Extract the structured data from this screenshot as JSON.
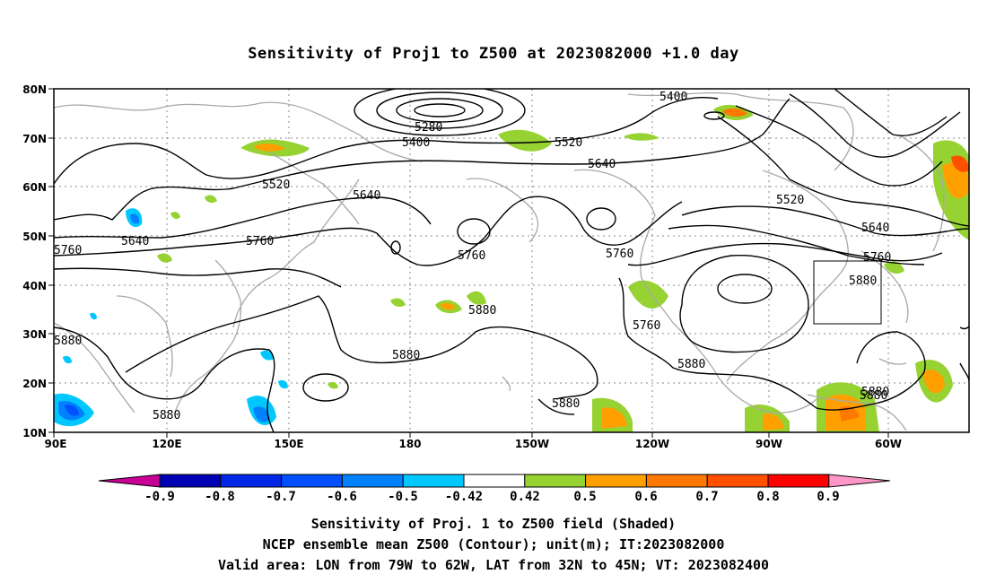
{
  "title": "Sensitivity of Proj1 to Z500 at 2023082000 +1.0 day",
  "lat_labels": [
    "80N",
    "70N",
    "60N",
    "50N",
    "40N",
    "30N",
    "20N",
    "10N"
  ],
  "lon_labels": [
    "90E",
    "120E",
    "150E",
    "180",
    "150W",
    "120W",
    "90W",
    "60W"
  ],
  "contour_labels": [
    "5400",
    "5280",
    "5400",
    "5520",
    "5640",
    "5520",
    "5640",
    "5640",
    "5760",
    "5760",
    "5760",
    "5760",
    "5640",
    "5520",
    "5760",
    "5880",
    "5880",
    "5880",
    "5760",
    "5880",
    "5880",
    "5880",
    "5880",
    "5880",
    "5880",
    "5760"
  ],
  "colorbar": {
    "labels": [
      "-0.9",
      "-0.8",
      "-0.7",
      "-0.6",
      "-0.5",
      "-0.42",
      "0.42",
      "0.5",
      "0.6",
      "0.7",
      "0.8",
      "0.9"
    ],
    "colors": [
      "#0000b4",
      "#0028e6",
      "#0050ff",
      "#0082ff",
      "#00c8ff",
      "#ffffff",
      "#96d232",
      "#ffa000",
      "#ff7800",
      "#ff5000",
      "#ff0000"
    ],
    "low_extension_color": "#c80096",
    "high_extension_color": "#ff96c8"
  },
  "captions": {
    "line1": "Sensitivity of Proj. 1 to Z500 field (Shaded)",
    "line2": "NCEP ensemble mean Z500 (Contour); unit(m); IT:2023082000",
    "line3": "Valid area: LON from 79W to 62W, LAT from 32N to 45N; VT: 2023082400"
  }
}
